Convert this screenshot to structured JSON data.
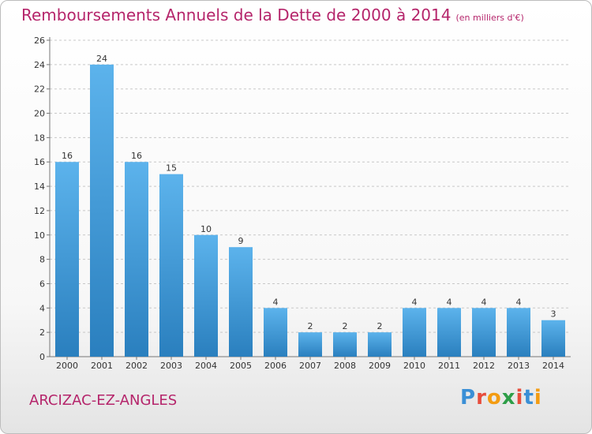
{
  "title": "Remboursements Annuels de la Dette de 2000 à 2014",
  "subtitle": "(en milliers d'€)",
  "commune": "ARCIZAC-EZ-ANGLES",
  "brand": {
    "letters": [
      "P",
      "r",
      "o",
      "x",
      "i",
      "t",
      "i"
    ],
    "colors": [
      "#3a8fd6",
      "#e74c3c",
      "#f39c12",
      "#2e9e48",
      "#e74c3c",
      "#3a8fd6",
      "#f39c12"
    ]
  },
  "colors": {
    "bar_top": "#5cb3ec",
    "bar_bottom": "#2a7fbe",
    "title": "#b5256b",
    "grid": "#c8c8c8"
  },
  "chart_data": {
    "type": "bar",
    "title": "Remboursements Annuels de la Dette de 2000 à 2014",
    "subtitle": "(en milliers d'€)",
    "categories": [
      "2000",
      "2001",
      "2002",
      "2003",
      "2004",
      "2005",
      "2006",
      "2007",
      "2008",
      "2009",
      "2010",
      "2011",
      "2012",
      "2013",
      "2014"
    ],
    "values": [
      16,
      24,
      16,
      15,
      10,
      9,
      4,
      2,
      2,
      2,
      4,
      4,
      4,
      4,
      3
    ],
    "ylim": [
      0,
      26
    ],
    "yticks": [
      0,
      2,
      4,
      6,
      8,
      10,
      12,
      14,
      16,
      18,
      20,
      22,
      24,
      26
    ],
    "grid": true,
    "grid_style": "dashed",
    "legend": false
  }
}
